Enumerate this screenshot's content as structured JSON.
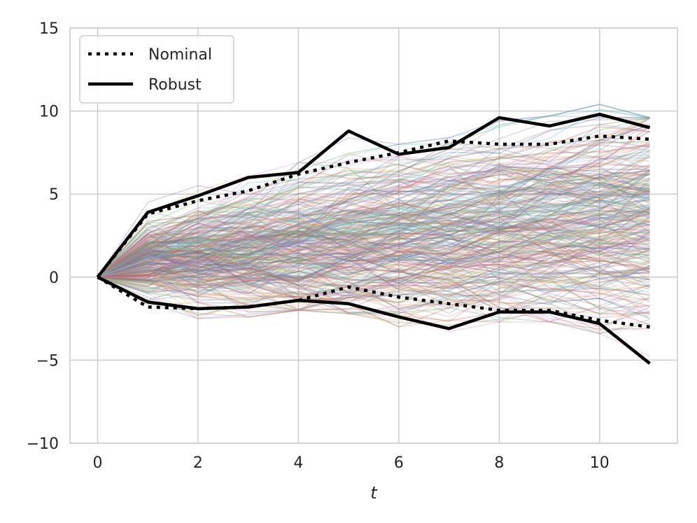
{
  "chart_data": {
    "type": "line",
    "title": "",
    "xlabel": "t",
    "ylabel": "",
    "xlim": [
      -0.55,
      11.55
    ],
    "ylim": [
      -10,
      15
    ],
    "xticks": [
      0,
      2,
      4,
      6,
      8,
      10
    ],
    "yticks": [
      -10,
      -5,
      0,
      5,
      10,
      15
    ],
    "xtick_labels": [
      "0",
      "2",
      "4",
      "6",
      "8",
      "10"
    ],
    "ytick_labels": [
      "−10",
      "−5",
      "0",
      "5",
      "10",
      "15"
    ],
    "grid": true,
    "legend_position": "top-left",
    "x": [
      0,
      1,
      2,
      3,
      4,
      5,
      6,
      7,
      8,
      9,
      10,
      11
    ],
    "series": [
      {
        "name": "Nominal",
        "style": "dotted",
        "color": "#000000",
        "band": "upper",
        "values": [
          0,
          3.8,
          4.6,
          5.2,
          6.2,
          6.9,
          7.5,
          8.2,
          8.0,
          8.0,
          8.5,
          8.3
        ]
      },
      {
        "name": "Nominal",
        "style": "dotted",
        "color": "#000000",
        "band": "lower",
        "values": [
          0,
          -1.8,
          -1.9,
          -1.8,
          -1.4,
          -0.6,
          -1.2,
          -1.6,
          -2.0,
          -2.0,
          -2.6,
          -3.0
        ]
      },
      {
        "name": "Robust",
        "style": "solid",
        "color": "#000000",
        "band": "upper",
        "values": [
          0,
          3.9,
          4.9,
          6.0,
          6.3,
          8.8,
          7.4,
          7.8,
          9.6,
          9.1,
          9.8,
          9.0
        ]
      },
      {
        "name": "Robust",
        "style": "solid",
        "color": "#000000",
        "band": "lower",
        "values": [
          0,
          -1.5,
          -1.9,
          -1.8,
          -1.4,
          -1.6,
          -2.4,
          -3.1,
          -2.1,
          -2.1,
          -2.8,
          -5.2
        ]
      }
    ],
    "sample_paths": {
      "count": 300,
      "opacity": 0.3,
      "palette": [
        "#4c72b0",
        "#dd8452",
        "#55a868",
        "#c44e52",
        "#8172b3",
        "#937860",
        "#da8bc3",
        "#8c8c8c",
        "#ccb974",
        "#64b5cd"
      ]
    }
  },
  "legend": {
    "items": [
      {
        "label": "Nominal",
        "style": "dotted"
      },
      {
        "label": "Robust",
        "style": "solid"
      }
    ]
  }
}
